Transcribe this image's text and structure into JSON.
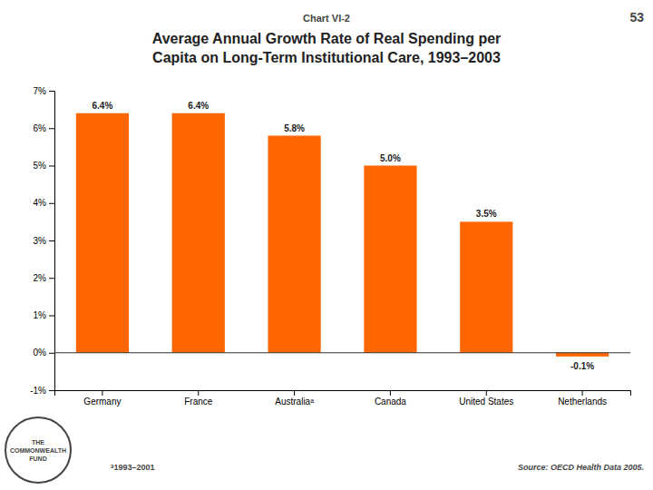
{
  "chart_data": {
    "type": "bar",
    "title": "Average Annual Growth Rate of Real Spending per\nCapita on Long-Term Institutional Care, 1993–2003",
    "categories": [
      "Germany",
      "France",
      "Australiaᵃ",
      "Canada",
      "United States",
      "Netherlands"
    ],
    "values": [
      6.4,
      6.4,
      5.8,
      5.0,
      3.5,
      -0.1
    ],
    "value_labels": [
      "6.4%",
      "6.4%",
      "5.8%",
      "5.0%",
      "3.5%",
      "-0.1%"
    ],
    "data_labels": true,
    "color": "#FF6600",
    "ylim": [
      -1,
      7
    ],
    "yticks": [
      {
        "value": -1,
        "label": "-1%"
      },
      {
        "value": 0,
        "label": "0%"
      },
      {
        "value": 1,
        "label": "1%"
      },
      {
        "value": 2,
        "label": "2%"
      },
      {
        "value": 3,
        "label": "3%"
      },
      {
        "value": 4,
        "label": "4%"
      },
      {
        "value": 5,
        "label": "5%"
      },
      {
        "value": 6,
        "label": "6%"
      },
      {
        "value": 7,
        "label": "7%"
      }
    ],
    "grid": false,
    "annotations": [
      "Chart VI-2",
      "53",
      "ᵃ1993–2001",
      "Source: OECD Health Data 2005.",
      "THE\nCOMMONWEALTH\nFUND"
    ]
  }
}
